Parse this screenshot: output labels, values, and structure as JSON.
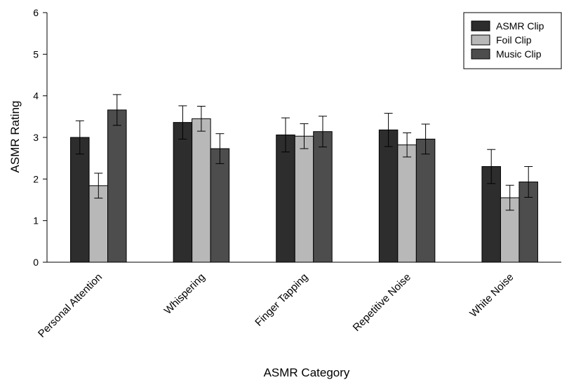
{
  "chart_data": {
    "type": "bar",
    "xlabel": "ASMR Category",
    "ylabel": "ASMR Rating",
    "ylim": [
      0,
      6
    ],
    "yticks": [
      "0",
      "1",
      "2",
      "3",
      "4",
      "5",
      "6"
    ],
    "categories": [
      "Personal Attention",
      "Whispering",
      "Finger Tapping",
      "Repetitive Noise",
      "White Noise"
    ],
    "series": [
      {
        "name": "ASMR Clip",
        "color": "#2d2d2d",
        "values": [
          3.0,
          3.36,
          3.06,
          3.18,
          2.3
        ],
        "errors": [
          0.4,
          0.4,
          0.41,
          0.4,
          0.41
        ]
      },
      {
        "name": "Foil Clip",
        "color": "#b8b8b8",
        "values": [
          1.84,
          3.45,
          3.03,
          2.82,
          1.55
        ],
        "errors": [
          0.3,
          0.3,
          0.3,
          0.29,
          0.3
        ]
      },
      {
        "name": "Music Clip",
        "color": "#4d4d4d",
        "values": [
          3.66,
          2.73,
          3.14,
          2.96,
          1.93
        ],
        "errors": [
          0.37,
          0.36,
          0.37,
          0.36,
          0.37
        ]
      }
    ],
    "legend": {
      "position": "top-right"
    },
    "grid": false
  }
}
